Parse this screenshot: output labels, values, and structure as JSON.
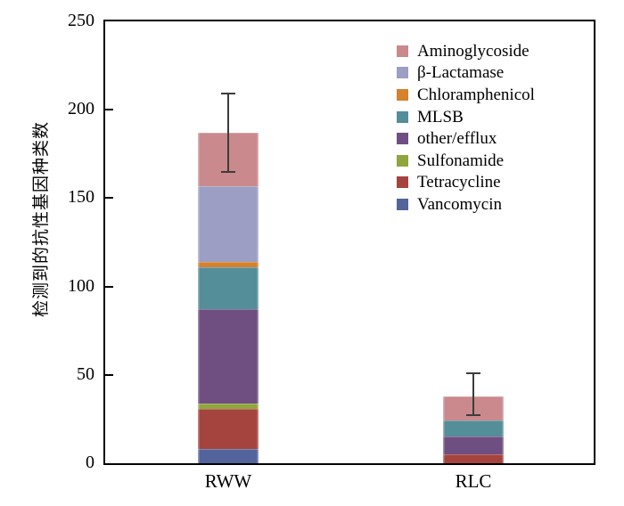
{
  "figure": {
    "background": "#ffffff",
    "axis_color": "#000000",
    "error_bar_color": "#3c3c3c"
  },
  "chart_data": {
    "type": "bar",
    "subtype": "stacked-vertical",
    "title": "",
    "xlabel": "",
    "ylabel": "检测到的抗性基因种类数",
    "categories": [
      "RWW",
      "RLC"
    ],
    "ylim": [
      0,
      250
    ],
    "yticks": [
      0,
      50,
      100,
      150,
      200,
      250
    ],
    "grid": false,
    "legend_position": "top-right-inside",
    "legend_order_note": "legend listed top to bottom; stack order in bars is reverse (first legend item is top segment)",
    "series": [
      {
        "name": "Aminoglycoside",
        "color": "#CA898C",
        "values": [
          30,
          14
        ]
      },
      {
        "name": "β-Lactamase",
        "color": "#9C9FC3",
        "values": [
          43,
          0
        ]
      },
      {
        "name": "Chloramphenicol",
        "color": "#D5812E",
        "values": [
          3,
          0
        ]
      },
      {
        "name": "MLSB",
        "color": "#548E98",
        "values": [
          24,
          9
        ]
      },
      {
        "name": "other/efflux",
        "color": "#6F4E81",
        "values": [
          53,
          10
        ]
      },
      {
        "name": "Sulfonamide",
        "color": "#8FA53E",
        "values": [
          3,
          0
        ]
      },
      {
        "name": "Tetracycline",
        "color": "#A5443E",
        "values": [
          23,
          5
        ]
      },
      {
        "name": "Vancomycin",
        "color": "#52649B",
        "values": [
          8,
          0
        ]
      }
    ],
    "totals": [
      187,
      38
    ],
    "error_bars": [
      {
        "category": "RWW",
        "low": 165,
        "high": 209
      },
      {
        "category": "RLC",
        "low": 27,
        "high": 51
      }
    ]
  }
}
